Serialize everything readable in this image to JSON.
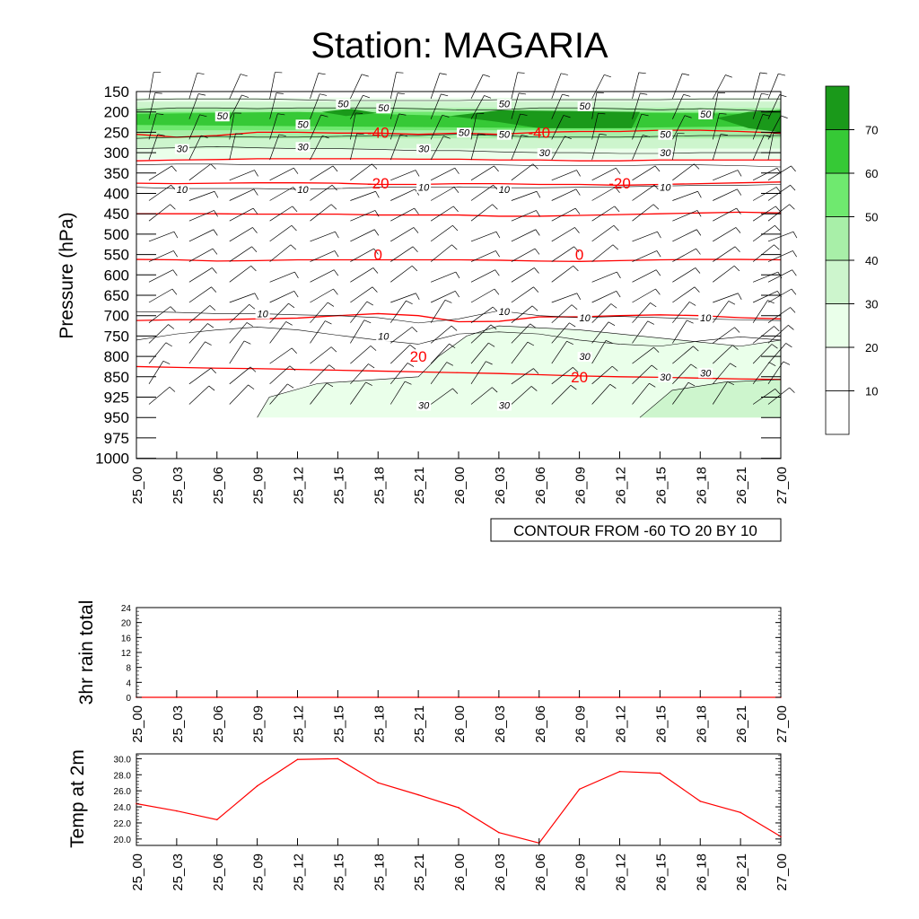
{
  "title": "Station: MAGARIA",
  "x_tick_labels": [
    "25_00",
    "25_03",
    "25_06",
    "25_09",
    "25_12",
    "25_15",
    "25_18",
    "25_21",
    "26_00",
    "26_03",
    "26_06",
    "26_09",
    "26_12",
    "26_15",
    "26_18",
    "26_21",
    "27_00"
  ],
  "colors": {
    "temp_contour": "#ff0000",
    "wind_contour": "#000000",
    "fill": [
      "#ffffff",
      "#ffffff",
      "#eaffea",
      "#cdf5cd",
      "#a8efa8",
      "#6fe96f",
      "#36c936",
      "#1a991a"
    ]
  },
  "chart_data": [
    {
      "type": "heatmap",
      "name": "cross-section",
      "ylabel": "Pressure (hPa)",
      "y_tick_labels": [
        "150",
        "200",
        "250",
        "300",
        "350",
        "400",
        "450",
        "500",
        "550",
        "600",
        "650",
        "700",
        "750",
        "800",
        "850",
        "925",
        "950",
        "975",
        "1000"
      ],
      "info_box": "CONTOUR FROM -60 TO 20 BY 10",
      "colorbar": {
        "labels": [
          "10",
          "20",
          "30",
          "40",
          "50",
          "60",
          "70"
        ],
        "levels": [
          0,
          10,
          20,
          30,
          40,
          50,
          60,
          70,
          80
        ]
      },
      "temperature_contour_labels": [
        {
          "text": "-40",
          "x": "25_18",
          "level": 250
        },
        {
          "text": "-40",
          "x": "26_06",
          "level": 250
        },
        {
          "text": "-20",
          "x": "25_18",
          "level": 375
        },
        {
          "text": "-20",
          "x": "26_12",
          "level": 375
        },
        {
          "text": "0",
          "x": "25_18",
          "level": 550
        },
        {
          "text": "0",
          "x": "26_09",
          "level": 550
        },
        {
          "text": "20",
          "x": "25_21",
          "level": 800
        },
        {
          "text": "20",
          "x": "26_09",
          "level": 850
        }
      ],
      "wind_speed_contour_labels": [
        {
          "text": "50",
          "x": "25_06",
          "level": 210
        },
        {
          "text": "50",
          "x": "25_15",
          "level": 180
        },
        {
          "text": "50",
          "x": "25_18",
          "level": 190
        },
        {
          "text": "50",
          "x": "25_12",
          "level": 230
        },
        {
          "text": "50",
          "x": "26_00",
          "level": 250
        },
        {
          "text": "50",
          "x": "26_03",
          "level": 180
        },
        {
          "text": "50",
          "x": "26_03",
          "level": 255
        },
        {
          "text": "50",
          "x": "26_09",
          "level": 185
        },
        {
          "text": "50",
          "x": "26_15",
          "level": 255
        },
        {
          "text": "50",
          "x": "26_18",
          "level": 205
        },
        {
          "text": "30",
          "x": "25_03",
          "level": 290
        },
        {
          "text": "30",
          "x": "25_12",
          "level": 285
        },
        {
          "text": "30",
          "x": "25_21",
          "level": 290
        },
        {
          "text": "30",
          "x": "26_06",
          "level": 300
        },
        {
          "text": "30",
          "x": "26_15",
          "level": 300
        },
        {
          "text": "10",
          "x": "25_03",
          "level": 390
        },
        {
          "text": "10",
          "x": "25_12",
          "level": 390
        },
        {
          "text": "10",
          "x": "25_21",
          "level": 385
        },
        {
          "text": "10",
          "x": "26_03",
          "level": 390
        },
        {
          "text": "10",
          "x": "26_15",
          "level": 385
        },
        {
          "text": "10",
          "x": "25_09",
          "level": 695
        },
        {
          "text": "10",
          "x": "26_03",
          "level": 690
        },
        {
          "text": "10",
          "x": "26_09",
          "level": 705
        },
        {
          "text": "10",
          "x": "26_18",
          "level": 705
        },
        {
          "text": "10",
          "x": "25_18",
          "level": 750
        },
        {
          "text": "30",
          "x": "26_09",
          "level": 800
        },
        {
          "text": "30",
          "x": "26_15",
          "level": 850
        },
        {
          "text": "30",
          "x": "26_18",
          "level": 840
        },
        {
          "text": "30",
          "x": "25_21",
          "level": 935
        },
        {
          "text": "30",
          "x": "26_03",
          "level": 935
        }
      ]
    },
    {
      "type": "line",
      "name": "rain",
      "ylabel": "3hr rain total",
      "ylim": [
        0,
        24
      ],
      "y_tick_labels": [
        "0",
        "4",
        "8",
        "12",
        "16",
        "20",
        "24"
      ],
      "series": [
        {
          "values": [
            0,
            0,
            0,
            0,
            0,
            0,
            0,
            0,
            0,
            0,
            0,
            0,
            0,
            0,
            0,
            0,
            0
          ]
        }
      ]
    },
    {
      "type": "line",
      "name": "temp",
      "ylabel": "Temp at 2m",
      "ylim": [
        19.2,
        30.6
      ],
      "y_tick_labels": [
        "20.0",
        "22.0",
        "24.0",
        "26.0",
        "28.0",
        "30.0"
      ],
      "series": [
        {
          "values": [
            24.4,
            23.5,
            22.4,
            26.6,
            29.9,
            30.0,
            27.0,
            25.5,
            23.9,
            20.8,
            19.5,
            26.2,
            28.4,
            28.2,
            24.7,
            23.3,
            20.3
          ]
        }
      ]
    }
  ]
}
